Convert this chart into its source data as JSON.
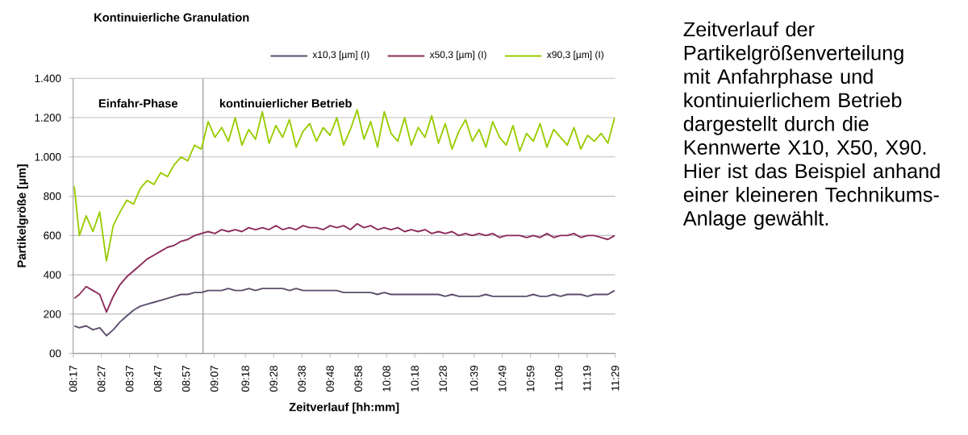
{
  "chart_data": {
    "type": "line",
    "title": "Kontinuierliche Granulation",
    "xlabel": "Zeitverlauf  [hh:mm]",
    "ylabel": "Partikelgröße [µm]",
    "annotations": [
      "Einfahr-Phase",
      "kontinuierlicher Betrieb",
      "Zeitverlauf der Partikelgrößenverteilung mit Anfahrphase und kontinuierlichem Betrieb dargestellt durch die Kennwerte X10, X50, X90. Hier ist das Beispiel anhand einer kleineren Technikums-Anlage gewählt."
    ],
    "x": [
      8.29,
      8.32,
      8.36,
      8.4,
      8.44,
      8.48,
      8.52,
      8.56,
      8.6,
      8.64,
      8.68,
      8.72,
      8.76,
      8.8,
      8.84,
      8.88,
      8.92,
      8.96,
      9.0,
      9.04,
      9.08,
      9.12,
      9.16,
      9.2,
      9.24,
      9.28,
      9.32,
      9.36,
      9.4,
      9.44,
      9.48,
      9.52,
      9.56,
      9.6,
      9.64,
      9.68,
      9.72,
      9.76,
      9.8,
      9.84,
      9.88,
      9.92,
      9.96,
      10.0,
      10.04,
      10.08,
      10.12,
      10.16,
      10.2,
      10.24,
      10.28,
      10.32,
      10.36,
      10.4,
      10.44,
      10.48,
      10.52,
      10.56,
      10.6,
      10.64,
      10.68,
      10.72,
      10.76,
      10.8,
      10.84,
      10.88,
      10.92,
      10.96,
      11.0,
      11.04,
      11.08,
      11.12,
      11.16,
      11.2,
      11.24,
      11.28,
      11.32,
      11.36,
      11.4,
      11.44,
      11.48
    ],
    "series": [
      {
        "name": "x10,3 [µm] (I)",
        "color": "#5b4d6b",
        "values": [
          140,
          130,
          140,
          120,
          130,
          90,
          120,
          160,
          190,
          220,
          240,
          250,
          260,
          270,
          280,
          290,
          300,
          300,
          310,
          310,
          320,
          320,
          320,
          330,
          320,
          320,
          330,
          320,
          330,
          330,
          330,
          330,
          320,
          330,
          320,
          320,
          320,
          320,
          320,
          320,
          310,
          310,
          310,
          310,
          310,
          300,
          310,
          300,
          300,
          300,
          300,
          300,
          300,
          300,
          300,
          290,
          300,
          290,
          290,
          290,
          290,
          300,
          290,
          290,
          290,
          290,
          290,
          290,
          300,
          290,
          290,
          300,
          290,
          300,
          300,
          300,
          290,
          300,
          300,
          300,
          320
        ]
      },
      {
        "name": "x50,3 [µm] (I)",
        "color": "#8b2a5a",
        "values": [
          280,
          300,
          340,
          320,
          300,
          210,
          290,
          350,
          390,
          420,
          450,
          480,
          500,
          520,
          540,
          550,
          570,
          580,
          600,
          610,
          620,
          610,
          630,
          620,
          630,
          620,
          640,
          630,
          640,
          630,
          650,
          630,
          640,
          630,
          650,
          640,
          640,
          630,
          650,
          640,
          650,
          630,
          660,
          640,
          650,
          630,
          640,
          630,
          640,
          620,
          630,
          620,
          630,
          610,
          620,
          610,
          620,
          600,
          610,
          600,
          610,
          600,
          610,
          590,
          600,
          600,
          600,
          590,
          600,
          590,
          610,
          590,
          600,
          600,
          610,
          590,
          600,
          600,
          590,
          580,
          600
        ]
      },
      {
        "name": "x90,3 [µm] (I)",
        "color": "#99cc00",
        "values": [
          850,
          600,
          700,
          620,
          720,
          470,
          650,
          720,
          780,
          760,
          840,
          880,
          860,
          920,
          900,
          960,
          1000,
          980,
          1060,
          1040,
          1180,
          1100,
          1150,
          1080,
          1200,
          1060,
          1140,
          1090,
          1230,
          1070,
          1160,
          1100,
          1190,
          1050,
          1130,
          1170,
          1080,
          1150,
          1110,
          1200,
          1060,
          1140,
          1240,
          1090,
          1180,
          1050,
          1230,
          1120,
          1080,
          1200,
          1060,
          1150,
          1100,
          1210,
          1070,
          1170,
          1040,
          1130,
          1190,
          1080,
          1140,
          1050,
          1180,
          1100,
          1060,
          1160,
          1030,
          1120,
          1080,
          1170,
          1050,
          1140,
          1100,
          1060,
          1150,
          1040,
          1110,
          1080,
          1120,
          1070,
          1200
        ]
      }
    ],
    "xlim": [
      8.2833,
      11.4833
    ],
    "xticks": [
      {
        "value": 8.2833,
        "label": "08:17"
      },
      {
        "value": 8.45,
        "label": "08:27"
      },
      {
        "value": 8.6167,
        "label": "08:37"
      },
      {
        "value": 8.7833,
        "label": "08:47"
      },
      {
        "value": 8.95,
        "label": "08:57"
      },
      {
        "value": 9.1167,
        "label": "09:07"
      },
      {
        "value": 9.3,
        "label": "09:18"
      },
      {
        "value": 9.4667,
        "label": "09:28"
      },
      {
        "value": 9.6333,
        "label": "09:38"
      },
      {
        "value": 9.8,
        "label": "09:48"
      },
      {
        "value": 9.9667,
        "label": "09:58"
      },
      {
        "value": 10.1333,
        "label": "10:08"
      },
      {
        "value": 10.3,
        "label": "10:18"
      },
      {
        "value": 10.4667,
        "label": "10:28"
      },
      {
        "value": 10.65,
        "label": "10:39"
      },
      {
        "value": 10.8167,
        "label": "10:49"
      },
      {
        "value": 10.9833,
        "label": "10:59"
      },
      {
        "value": 11.15,
        "label": "11:09"
      },
      {
        "value": 11.3167,
        "label": "11:19"
      },
      {
        "value": 11.4833,
        "label": "11:29"
      }
    ],
    "ylim": [
      0,
      1400
    ],
    "yticks": [
      {
        "value": 0,
        "label": "00"
      },
      {
        "value": 200,
        "label": "200"
      },
      {
        "value": 400,
        "label": "400"
      },
      {
        "value": 600,
        "label": "600"
      },
      {
        "value": 800,
        "label": "800"
      },
      {
        "value": 1000,
        "label": "1.000"
      },
      {
        "value": 1200,
        "label": "1.200"
      },
      {
        "value": 1400,
        "label": "1.400"
      }
    ],
    "ref_lines": [
      {
        "axis": "x",
        "value": 9.05,
        "color": "#a0a0a0"
      }
    ],
    "grid": "y",
    "legend": "top right"
  }
}
